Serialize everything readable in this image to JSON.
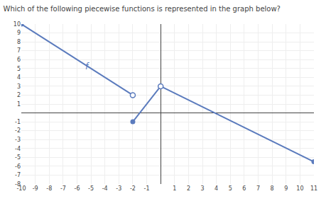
{
  "chart_data": {
    "type": "line",
    "title": "Which of the following piecewise functions is represented in the graph below?",
    "series": [
      {
        "type": "line",
        "color": "#5b7bbd",
        "x": [
          -10,
          -2
        ],
        "values": [
          10,
          2
        ]
      },
      {
        "type": "line",
        "color": "#5b7bbd",
        "x": [
          -2,
          0
        ],
        "values": [
          -1,
          3
        ]
      },
      {
        "type": "line",
        "color": "#5b7bbd",
        "x": [
          0,
          11
        ],
        "values": [
          3,
          -5.5
        ]
      },
      {
        "type": "scatter",
        "marker": "filled",
        "color": "#5b7bbd",
        "x": [
          -10,
          -2,
          0,
          11
        ],
        "values": [
          10,
          -1,
          3,
          -5.5
        ]
      },
      {
        "type": "scatter",
        "marker": "open",
        "color": "#5b7bbd",
        "x": [
          -2,
          0
        ],
        "values": [
          2,
          3
        ]
      }
    ],
    "annotations": [
      {
        "text": "f",
        "x": -5.5,
        "y": 4.5,
        "color": "#5b7bbd"
      }
    ],
    "xlim": [
      -10,
      11
    ],
    "ylim": [
      -8,
      10
    ],
    "xticks": [
      -10,
      -9,
      -8,
      -7,
      -6,
      -5,
      -4,
      -3,
      -2,
      -1,
      1,
      2,
      3,
      4,
      5,
      6,
      7,
      8,
      9,
      10,
      11
    ],
    "yticks": [
      -8,
      -7,
      -6,
      -5,
      -4,
      -3,
      -2,
      -1,
      1,
      2,
      3,
      4,
      5,
      6,
      7,
      8,
      9,
      10
    ],
    "grid": true
  }
}
